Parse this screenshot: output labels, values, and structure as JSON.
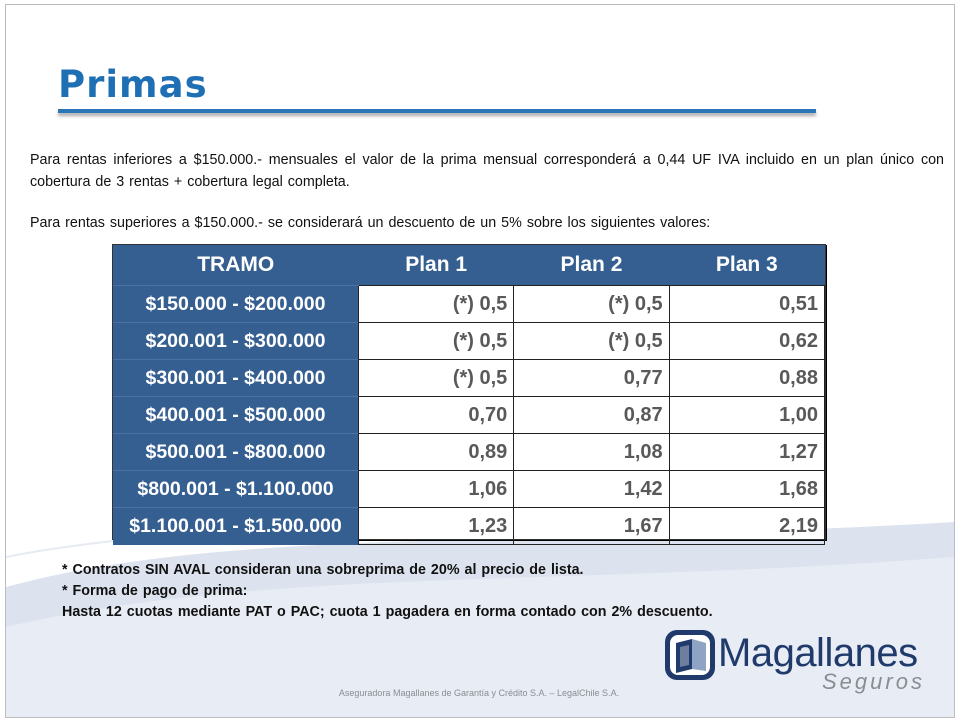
{
  "slide": {
    "title": "Primas",
    "paragraph1": "Para rentas inferiores a $150.000.- mensuales el valor de la prima mensual corresponderá a 0,44 UF IVA incluido en un plan único con cobertura de 3 rentas + cobertura legal completa.",
    "paragraph2": "Para rentas superiores a $150.000.- se considerará un descuento de un 5% sobre los siguientes valores:"
  },
  "table": {
    "headers": [
      "TRAMO",
      "Plan 1",
      "Plan 2",
      "Plan 3"
    ],
    "rows": [
      [
        "$150.000 - $200.000",
        "(*) 0,5",
        "(*) 0,5",
        "0,51"
      ],
      [
        "$200.001 - $300.000",
        "(*) 0,5",
        "(*) 0,5",
        "0,62"
      ],
      [
        "$300.001 - $400.000",
        "(*) 0,5",
        "0,77",
        "0,88"
      ],
      [
        "$400.001 - $500.000",
        "0,70",
        "0,87",
        "1,00"
      ],
      [
        "$500.001 - $800.000",
        "0,89",
        "1,08",
        "1,27"
      ],
      [
        "$800.001 - $1.100.000",
        "1,06",
        "1,42",
        "1,68"
      ],
      [
        "$1.100.001 - $1.500.000",
        "1,23",
        "1,67",
        "2,19"
      ]
    ]
  },
  "notes": [
    "* Contratos SIN AVAL consideran una sobreprima de 20% al precio de lista.",
    "* Forma de pago de prima:",
    "Hasta 12 cuotas mediante PAT o PAC; cuota 1 pagadera en forma contado con 2% descuento."
  ],
  "logo": {
    "name": "Magallanes",
    "subtitle": "Seguros",
    "icon": "magallanes-book-icon"
  },
  "footer": "Aseguradora Magallanes de Garantía y Crédito S.A. – LegalChile S.A.",
  "colors": {
    "title": "#1f6fb5",
    "table_header": "#365f91",
    "cell_text": "#595959",
    "logo": "#1f3a6b"
  }
}
